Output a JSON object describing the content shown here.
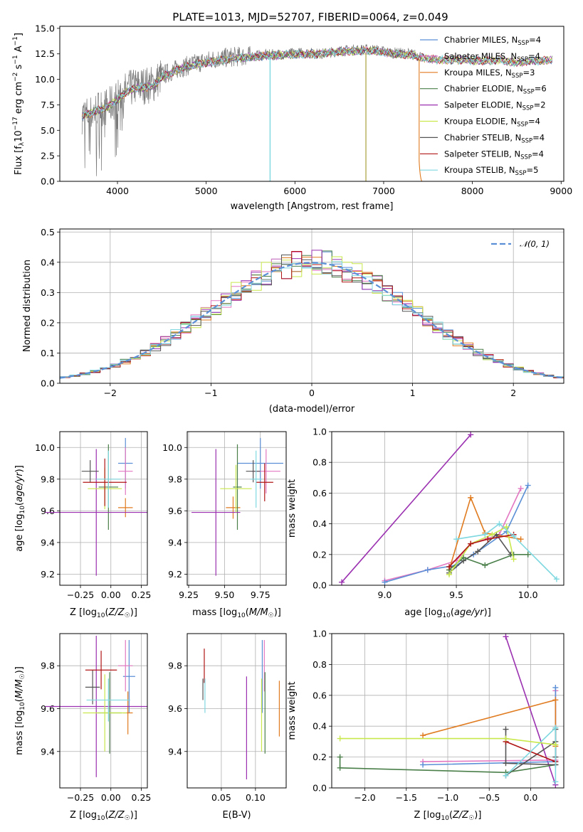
{
  "colors": {
    "chabrier_miles": "#5b8fd6",
    "salpeter_miles": "#e377c2",
    "kroupa_miles": "#e07b20",
    "chabrier_elodie": "#4a7f4a",
    "salpeter_elodie": "#9b30b0",
    "kroupa_elodie": "#c8e84c",
    "chabrier_stelib": "#555555",
    "salpeter_stelib": "#b01515",
    "kroupa_stelib": "#7fd8e0",
    "spectrum": "#7a7a7a",
    "normal": "#5b8fd6"
  },
  "chart_data": [
    {
      "type": "line",
      "title": "PLATE=1013, MJD=52707, FIBERID=0064, z=0.049",
      "xlabel": "wavelength [Angstrom, rest frame]",
      "ylabel": "Flux [f_λ 10^-17 erg cm^-2 s^-1 A^-1]",
      "xlim": [
        3350,
        9030
      ],
      "ylim": [
        0,
        15.2
      ],
      "xticks": [
        "4000",
        "5000",
        "6000",
        "7000",
        "8000",
        "9000"
      ],
      "yticks": [
        "0.0",
        "2.5",
        "5.0",
        "7.5",
        "10.0",
        "12.5",
        "15.0"
      ],
      "legend_position": "top-right",
      "spectrum": {
        "x": [
          3600,
          3700,
          3800,
          3900,
          4000,
          4100,
          4200,
          4300,
          4400,
          4500,
          4700,
          4900,
          5100,
          5300,
          5500,
          5700,
          5900,
          6100,
          6300,
          6500,
          6700,
          6900,
          7100,
          7300,
          7420
        ],
        "y": [
          6.5,
          6.6,
          7.2,
          7.3,
          8.2,
          8.9,
          9.3,
          9.4,
          9.5,
          10.4,
          11.1,
          11.6,
          12.0,
          12.2,
          12.3,
          12.4,
          12.5,
          12.6,
          12.5,
          12.8,
          12.9,
          12.9,
          12.6,
          12.5,
          12.3
        ]
      },
      "model": {
        "x": [
          3600,
          3700,
          3800,
          3900,
          4000,
          4100,
          4200,
          4300,
          4400,
          4500,
          4700,
          4900,
          5100,
          5300,
          5500,
          5700,
          5900,
          6100,
          6300,
          6500,
          6700,
          6900,
          7100,
          7300,
          7500,
          7700,
          7900,
          8100,
          8300,
          8500,
          8700,
          8900
        ],
        "y": [
          6.4,
          6.7,
          7.0,
          7.4,
          8.0,
          8.8,
          9.1,
          9.2,
          9.3,
          10.2,
          11.0,
          11.5,
          11.8,
          12.0,
          12.2,
          12.3,
          12.4,
          12.5,
          12.5,
          12.7,
          12.8,
          12.8,
          12.5,
          12.4,
          12.0,
          11.9,
          11.9,
          11.8,
          11.9,
          11.6,
          11.8,
          11.9
        ]
      },
      "series": [
        {
          "name": "Chabrier MILES, N_SSP=4",
          "label_main": "Chabrier MILES, N",
          "label_sub": "SSP",
          "label_tail": "=4"
        },
        {
          "name": "Salpeter MILES, N_SSP=4",
          "label_main": "Salpeter MILES, N",
          "label_sub": "SSP",
          "label_tail": "=4"
        },
        {
          "name": "Kroupa MILES, N_SSP=3",
          "label_main": "Kroupa MILES, N",
          "label_sub": "SSP",
          "label_tail": "=3"
        },
        {
          "name": "Chabrier ELODIE, N_SSP=6",
          "label_main": "Chabrier ELODIE, N",
          "label_sub": "SSP",
          "label_tail": "=6"
        },
        {
          "name": "Salpeter ELODIE, N_SSP=2",
          "label_main": "Salpeter ELODIE, N",
          "label_sub": "SSP",
          "label_tail": "=2"
        },
        {
          "name": "Kroupa ELODIE, N_SSP=4",
          "label_main": "Kroupa ELODIE, N",
          "label_sub": "SSP",
          "label_tail": "=4"
        },
        {
          "name": "Chabrier STELIB, N_SSP=4",
          "label_main": "Chabrier STELIB, N",
          "label_sub": "SSP",
          "label_tail": "=4"
        },
        {
          "name": "Salpeter STELIB, N_SSP=4",
          "label_main": "Salpeter STELIB, N",
          "label_sub": "SSP",
          "label_tail": "=4"
        },
        {
          "name": "Kroupa STELIB, N_SSP=5",
          "label_main": "Kroupa STELIB, N",
          "label_sub": "SSP",
          "label_tail": "=5"
        }
      ]
    },
    {
      "type": "line",
      "xlabel": "(data-model)/error",
      "ylabel": "Normed distribution",
      "xlim": [
        -2.5,
        2.5
      ],
      "ylim": [
        0,
        0.51
      ],
      "xticks": [
        -2,
        -1,
        0,
        1,
        2
      ],
      "yticks": [
        0.0,
        0.1,
        0.2,
        0.3,
        0.4,
        0.5
      ],
      "grid": true,
      "legend_position": "top-right",
      "normal_label": "𝒩(0, 1)",
      "bins_centers": [
        -2.45,
        -2.35,
        -2.25,
        -2.15,
        -2.05,
        -1.95,
        -1.85,
        -1.75,
        -1.65,
        -1.55,
        -1.45,
        -1.35,
        -1.25,
        -1.15,
        -1.05,
        -0.95,
        -0.85,
        -0.75,
        -0.65,
        -0.55,
        -0.45,
        -0.35,
        -0.25,
        -0.15,
        -0.05,
        0.05,
        0.15,
        0.25,
        0.35,
        0.45,
        0.55,
        0.65,
        0.75,
        0.85,
        0.95,
        1.05,
        1.15,
        1.25,
        1.35,
        1.45,
        1.55,
        1.65,
        1.75,
        1.85,
        1.95,
        2.05,
        2.15,
        2.25,
        2.35,
        2.45
      ]
    },
    {
      "type": "scatter",
      "xlabel": "Z [log10(Z/Z☉)]",
      "ylabel": "age  [log10(age/yr)]",
      "xlim": [
        -0.42,
        0.3
      ],
      "ylim": [
        9.13,
        10.1
      ],
      "xticks": [
        "-0.25",
        "0.00",
        "0.25"
      ],
      "yticks": [
        "9.2",
        "9.4",
        "9.6",
        "9.8",
        "10.0"
      ],
      "points": [
        {
          "x": 0.12,
          "y": 9.9,
          "xerr": 0.06,
          "yerr": 0.16
        },
        {
          "x": 0.12,
          "y": 9.85,
          "xerr": 0.06,
          "yerr": 0.15
        },
        {
          "x": 0.12,
          "y": 9.62,
          "xerr": 0.06,
          "yerr": 0.06
        },
        {
          "x": -0.02,
          "y": 9.75,
          "xerr": 0.08,
          "yerr": 0.27
        },
        {
          "x": -0.12,
          "y": 9.59,
          "xerr": 0.42,
          "yerr": 0.4
        },
        {
          "x": -0.05,
          "y": 9.74,
          "xerr": 0.14,
          "yerr": 0.13
        },
        {
          "x": -0.17,
          "y": 9.85,
          "xerr": 0.07,
          "yerr": 0.07
        },
        {
          "x": -0.05,
          "y": 9.78,
          "xerr": 0.18,
          "yerr": 0.15
        },
        {
          "x": -0.02,
          "y": 9.8,
          "xerr": 0.1,
          "yerr": 0.18
        }
      ]
    },
    {
      "type": "scatter",
      "xlabel": "mass [log10(M/M☉)]",
      "ylabel": "",
      "xlim": [
        9.24,
        9.93
      ],
      "ylim": [
        9.13,
        10.1
      ],
      "xticks": [
        "9.25",
        "9.50",
        "9.75"
      ],
      "yticks": [
        "9.2",
        "9.4",
        "9.6",
        "9.8",
        "10.0"
      ],
      "points": [
        {
          "x": 9.75,
          "y": 9.9,
          "xerr": 0.16,
          "yerr": 0.16
        },
        {
          "x": 9.79,
          "y": 9.85,
          "xerr": 0.1,
          "yerr": 0.14
        },
        {
          "x": 9.56,
          "y": 9.62,
          "xerr": 0.05,
          "yerr": 0.07
        },
        {
          "x": 9.59,
          "y": 9.75,
          "xerr": 0.03,
          "yerr": 0.27
        },
        {
          "x": 9.44,
          "y": 9.59,
          "xerr": 0.17,
          "yerr": 0.4
        },
        {
          "x": 9.58,
          "y": 9.74,
          "xerr": 0.11,
          "yerr": 0.15
        },
        {
          "x": 9.7,
          "y": 9.85,
          "xerr": 0.05,
          "yerr": 0.07
        },
        {
          "x": 9.78,
          "y": 9.78,
          "xerr": 0.06,
          "yerr": 0.12
        },
        {
          "x": 9.72,
          "y": 9.8,
          "xerr": 0.04,
          "yerr": 0.18
        }
      ]
    },
    {
      "type": "line",
      "xlabel": "age  [log10(age/yr)]",
      "ylabel": "mass weight",
      "xlim": [
        8.63,
        10.25
      ],
      "ylim": [
        0,
        1.0
      ],
      "xticks": [
        "9.0",
        "9.5",
        "10.0"
      ],
      "yticks": [
        "0.0",
        "0.2",
        "0.4",
        "0.6",
        "0.8",
        "1.0"
      ],
      "grid": true,
      "lines": [
        {
          "x": [
            8.7,
            9.6
          ],
          "y": [
            0.02,
            0.98
          ]
        },
        {
          "x": [
            9.0,
            9.3,
            9.5,
            9.6,
            9.8,
            9.95
          ],
          "y": [
            0.03,
            0.1,
            0.16,
            0.27,
            0.33,
            0.63
          ]
        },
        {
          "x": [
            9.0,
            9.3,
            9.5,
            9.62,
            9.85,
            10.0
          ],
          "y": [
            0.02,
            0.1,
            0.13,
            0.2,
            0.35,
            0.65
          ]
        },
        {
          "x": [
            9.45,
            9.6,
            9.7,
            9.95
          ],
          "y": [
            0.1,
            0.57,
            0.34,
            0.3
          ]
        },
        {
          "x": [
            9.45,
            9.55,
            9.65,
            9.78,
            9.88
          ],
          "y": [
            0.08,
            0.16,
            0.22,
            0.33,
            0.2
          ]
        },
        {
          "x": [
            9.45,
            9.55,
            9.7,
            9.9,
            10.0
          ],
          "y": [
            0.1,
            0.18,
            0.13,
            0.2,
            0.2
          ]
        },
        {
          "x": [
            9.45,
            9.6,
            9.75,
            9.85,
            9.9
          ],
          "y": [
            0.07,
            0.27,
            0.33,
            0.38,
            0.17
          ]
        },
        {
          "x": [
            9.45,
            9.6,
            9.72,
            9.9
          ],
          "y": [
            0.12,
            0.27,
            0.3,
            0.33
          ]
        },
        {
          "x": [
            9.5,
            9.7,
            9.8,
            9.9,
            10.2
          ],
          "y": [
            0.3,
            0.33,
            0.4,
            0.32,
            0.04
          ]
        }
      ]
    },
    {
      "type": "scatter",
      "xlabel": "Z [log10(Z/Z☉)]",
      "ylabel": "mass [log10(M/M☉)]",
      "xlim": [
        -0.42,
        0.3
      ],
      "ylim": [
        9.23,
        9.95
      ],
      "xticks": [
        "-0.25",
        "0.00",
        "0.25"
      ],
      "yticks": [
        "9.4",
        "9.6",
        "9.8"
      ],
      "points": [
        {
          "x": 0.15,
          "y": 9.75,
          "xerr": 0.05,
          "yerr": 0.17
        },
        {
          "x": 0.12,
          "y": 9.8,
          "xerr": 0.06,
          "yerr": 0.12
        },
        {
          "x": 0.14,
          "y": 9.58,
          "xerr": 0.04,
          "yerr": 0.1
        },
        {
          "x": -0.01,
          "y": 9.58,
          "xerr": 0.1,
          "yerr": 0.19
        },
        {
          "x": -0.12,
          "y": 9.61,
          "xerr": 0.42,
          "yerr": 0.33
        },
        {
          "x": -0.05,
          "y": 9.58,
          "xerr": 0.18,
          "yerr": 0.18
        },
        {
          "x": -0.15,
          "y": 9.7,
          "xerr": 0.06,
          "yerr": 0.08
        },
        {
          "x": -0.08,
          "y": 9.78,
          "xerr": 0.13,
          "yerr": 0.09
        },
        {
          "x": -0.02,
          "y": 9.64,
          "xerr": 0.18,
          "yerr": 0.1
        }
      ]
    },
    {
      "type": "scatter",
      "xlabel": "E(B-V)",
      "ylabel": "",
      "xlim": [
        0.0,
        0.145
      ],
      "ylim": [
        9.23,
        9.95
      ],
      "xticks": [
        "0.05",
        "0.10"
      ],
      "yticks": [
        "9.4",
        "9.6",
        "9.8"
      ],
      "points": [
        {
          "x": 0.11,
          "y": 9.75,
          "yerr": 0.17
        },
        {
          "x": 0.113,
          "y": 9.8,
          "yerr": 0.12
        },
        {
          "x": 0.135,
          "y": 9.6,
          "yerr": 0.13
        },
        {
          "x": 0.114,
          "y": 9.58,
          "yerr": 0.19
        },
        {
          "x": 0.087,
          "y": 9.51,
          "yerr": 0.24
        },
        {
          "x": 0.109,
          "y": 9.57,
          "yerr": 0.17
        },
        {
          "x": 0.023,
          "y": 9.69,
          "yerr": 0.05
        },
        {
          "x": 0.025,
          "y": 9.8,
          "yerr": 0.08
        },
        {
          "x": 0.026,
          "y": 9.66,
          "yerr": 0.08
        }
      ]
    },
    {
      "type": "line",
      "xlabel": "Z [log10(Z/Z☉)]",
      "ylabel": "mass weight",
      "xlim": [
        -2.4,
        0.4
      ],
      "ylim": [
        0,
        1.0
      ],
      "xticks": [
        "-2.0",
        "-1.5",
        "-1.0",
        "-0.5",
        "0.0"
      ],
      "yticks": [
        "0.0",
        "0.2",
        "0.4",
        "0.6",
        "0.8",
        "1.0"
      ],
      "grid": true,
      "lines": [
        {
          "x": [
            -0.3,
            0.3
          ],
          "y": [
            0.98,
            0.02
          ]
        },
        {
          "x": [
            -1.3,
            0.3,
            0.3
          ],
          "y": [
            0.17,
            0.18,
            0.63
          ]
        },
        {
          "x": [
            -1.3,
            0.3,
            0.3
          ],
          "y": [
            0.15,
            0.17,
            0.65
          ]
        },
        {
          "x": [
            -1.3,
            0.3,
            0.3
          ],
          "y": [
            0.34,
            0.57,
            0.27
          ]
        },
        {
          "x": [
            -0.3,
            0.3,
            0.3
          ],
          "y": [
            0.08,
            0.3,
            0.2
          ]
        },
        {
          "x": [
            -2.3,
            -2.3,
            -0.3,
            0.3
          ],
          "y": [
            0.2,
            0.13,
            0.1,
            0.15
          ]
        },
        {
          "x": [
            -0.3,
            -0.3,
            0.3,
            0.3
          ],
          "y": [
            0.38,
            0.16,
            0.15,
            0.38
          ]
        },
        {
          "x": [
            -0.3,
            0.3
          ],
          "y": [
            0.3,
            0.17
          ]
        },
        {
          "x": [
            -0.3,
            0.3,
            0.3
          ],
          "y": [
            0.08,
            0.39,
            0.04
          ]
        },
        {
          "x": [
            -2.3,
            -0.3,
            0.3
          ],
          "y": [
            0.32,
            0.32,
            0.28
          ]
        }
      ]
    }
  ]
}
